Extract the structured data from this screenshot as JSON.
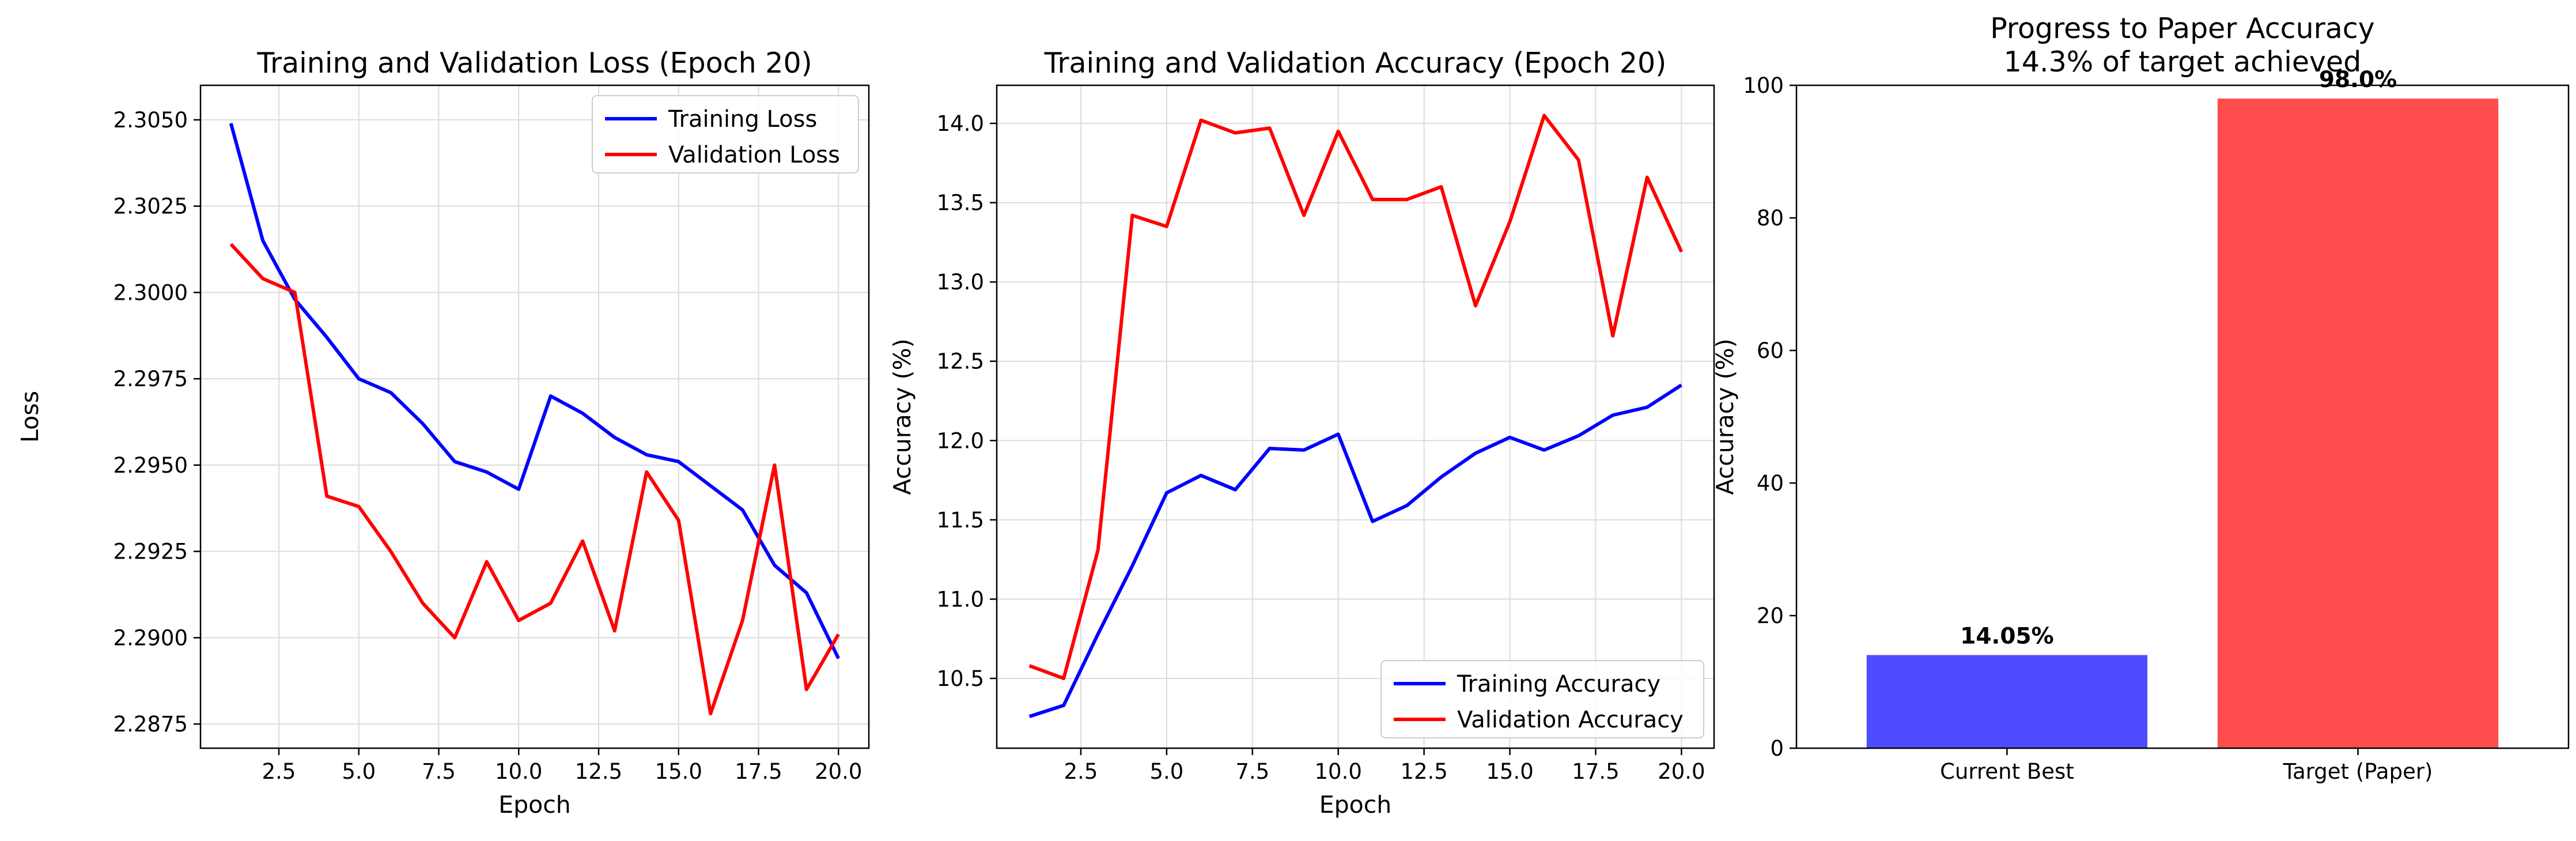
{
  "chart_data": [
    {
      "type": "line",
      "title": "Training and Validation Loss (Epoch 20)",
      "xlabel": "Epoch",
      "ylabel": "Loss",
      "xlim": [
        0.05,
        20.95
      ],
      "ylim": [
        2.2868,
        2.306
      ],
      "xticks": [
        2.5,
        5.0,
        7.5,
        10.0,
        12.5,
        15.0,
        17.5,
        20.0
      ],
      "yticks": [
        2.2875,
        2.29,
        2.2925,
        2.295,
        2.2975,
        2.3,
        2.3025,
        2.305
      ],
      "x": [
        1,
        2,
        3,
        4,
        5,
        6,
        7,
        8,
        9,
        10,
        11,
        12,
        13,
        14,
        15,
        16,
        17,
        18,
        19,
        20
      ],
      "grid": true,
      "legend_position": "upper right",
      "series": [
        {
          "name": "Training Loss",
          "color": "#0000ff",
          "values": [
            2.3049,
            2.3015,
            2.2998,
            2.2987,
            2.2975,
            2.2971,
            2.2962,
            2.2951,
            2.2948,
            2.2943,
            2.297,
            2.2965,
            2.2958,
            2.2953,
            2.2951,
            2.2944,
            2.2937,
            2.2921,
            2.2913,
            2.2894
          ]
        },
        {
          "name": "Validation Loss",
          "color": "#ff0000",
          "values": [
            2.3014,
            2.3004,
            2.3,
            2.2941,
            2.2938,
            2.2925,
            2.291,
            2.29,
            2.2922,
            2.2905,
            2.291,
            2.2928,
            2.2902,
            2.2948,
            2.2934,
            2.2878,
            2.2905,
            2.295,
            2.2885,
            2.2901
          ]
        }
      ]
    },
    {
      "type": "line",
      "title": "Training and Validation Accuracy (Epoch 20)",
      "xlabel": "Epoch",
      "ylabel": "Accuracy (%)",
      "xlim": [
        0.05,
        20.95
      ],
      "ylim": [
        10.06,
        14.24
      ],
      "xticks": [
        2.5,
        5.0,
        7.5,
        10.0,
        12.5,
        15.0,
        17.5,
        20.0
      ],
      "yticks": [
        10.5,
        11.0,
        11.5,
        12.0,
        12.5,
        13.0,
        13.5,
        14.0
      ],
      "x": [
        1,
        2,
        3,
        4,
        5,
        6,
        7,
        8,
        9,
        10,
        11,
        12,
        13,
        14,
        15,
        16,
        17,
        18,
        19,
        20
      ],
      "grid": true,
      "legend_position": "lower right",
      "series": [
        {
          "name": "Training Accuracy",
          "color": "#0000ff",
          "values": [
            10.26,
            10.33,
            10.78,
            11.21,
            11.67,
            11.78,
            11.69,
            11.95,
            11.94,
            12.04,
            11.49,
            11.59,
            11.77,
            11.92,
            12.02,
            11.94,
            12.03,
            12.16,
            12.21,
            12.35
          ]
        },
        {
          "name": "Validation Accuracy",
          "color": "#ff0000",
          "values": [
            10.58,
            10.5,
            11.31,
            13.42,
            13.35,
            14.02,
            13.94,
            13.97,
            13.42,
            13.95,
            13.52,
            13.52,
            13.6,
            12.85,
            13.38,
            14.05,
            13.77,
            12.66,
            13.66,
            13.19
          ]
        }
      ]
    },
    {
      "type": "bar",
      "title": "Progress to Paper Accuracy",
      "subtitle": "14.3% of target achieved",
      "xlabel": "",
      "ylabel": "Accuracy (%)",
      "ylim": [
        0,
        100
      ],
      "yticks": [
        0,
        20,
        40,
        60,
        80,
        100
      ],
      "categories": [
        "Current Best",
        "Target (Paper)"
      ],
      "values": [
        14.05,
        98.0
      ],
      "data_labels": [
        "14.05%",
        "98.0%"
      ],
      "colors": [
        "#4d4dff",
        "#ff4d4d"
      ],
      "grid": false
    }
  ]
}
